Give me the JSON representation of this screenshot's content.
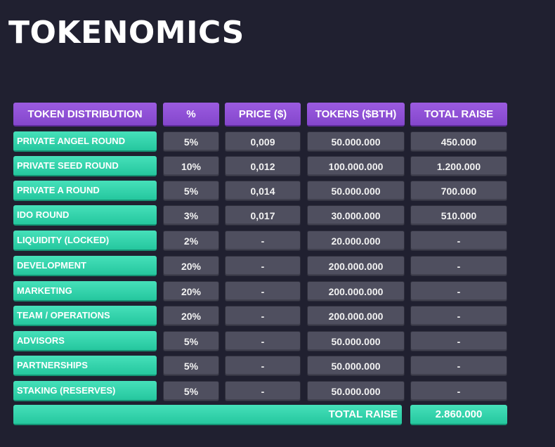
{
  "title": "TOKENOMICS",
  "headers": [
    "TOKEN DISTRIBUTION",
    "%",
    "PRICE ($)",
    "TOKENS ($BTH)",
    "TOTAL RAISE"
  ],
  "rows": [
    [
      "PRIVATE ANGEL ROUND",
      "5%",
      "0,009",
      "50.000.000",
      "450.000"
    ],
    [
      "PRIVATE SEED ROUND",
      "10%",
      "0,012",
      "100.000.000",
      "1.200.000"
    ],
    [
      "PRIVATE A ROUND",
      "5%",
      "0,014",
      "50.000.000",
      "700.000"
    ],
    [
      "IDO ROUND",
      "3%",
      "0,017",
      "30.000.000",
      "510.000"
    ],
    [
      "LIQUIDITY (LOCKED)",
      "2%",
      "-",
      "20.000.000",
      "-"
    ],
    [
      "DEVELOPMENT",
      "20%",
      "-",
      "200.000.000",
      "-"
    ],
    [
      "MARKETING",
      "20%",
      "-",
      "200.000.000",
      "-"
    ],
    [
      "TEAM / OPERATIONS",
      "20%",
      "-",
      "200.000.000",
      "-"
    ],
    [
      "ADVISORS",
      "5%",
      "-",
      "50.000.000",
      "-"
    ],
    [
      "PARTNERSHIPS",
      "5%",
      "-",
      "50.000.000",
      "-"
    ],
    [
      "STAKING (RESERVES)",
      "5%",
      "-",
      "50.000.000",
      "-"
    ]
  ],
  "total": {
    "label": "TOTAL RAISE",
    "value": "2.860.000"
  }
}
